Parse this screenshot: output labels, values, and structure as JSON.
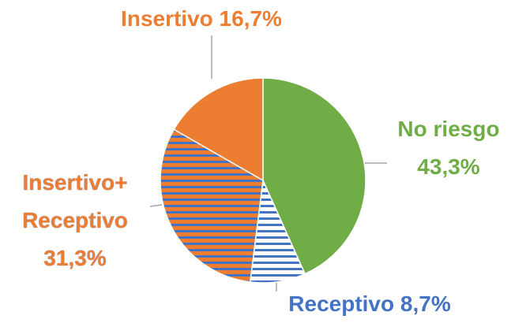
{
  "chart_data": {
    "type": "pie",
    "categories": [
      "No riesgo",
      "Receptivo",
      "Insertivo+ Receptivo",
      "Insertivo"
    ],
    "values": [
      43.3,
      8.7,
      31.3,
      16.7
    ],
    "value_labels": [
      "43,3%",
      "8,7%",
      "31,3%",
      "16,7%"
    ],
    "fill_colors": [
      "#70ad47",
      "#ffffff",
      "#ed7d31",
      "#ed7d31"
    ],
    "stripe_colors": [
      null,
      "#4472c4",
      "#4472c4",
      null
    ],
    "label_colors": [
      "#70ad47",
      "#4472c4",
      "#ed7d31",
      "#ed7d31"
    ]
  }
}
